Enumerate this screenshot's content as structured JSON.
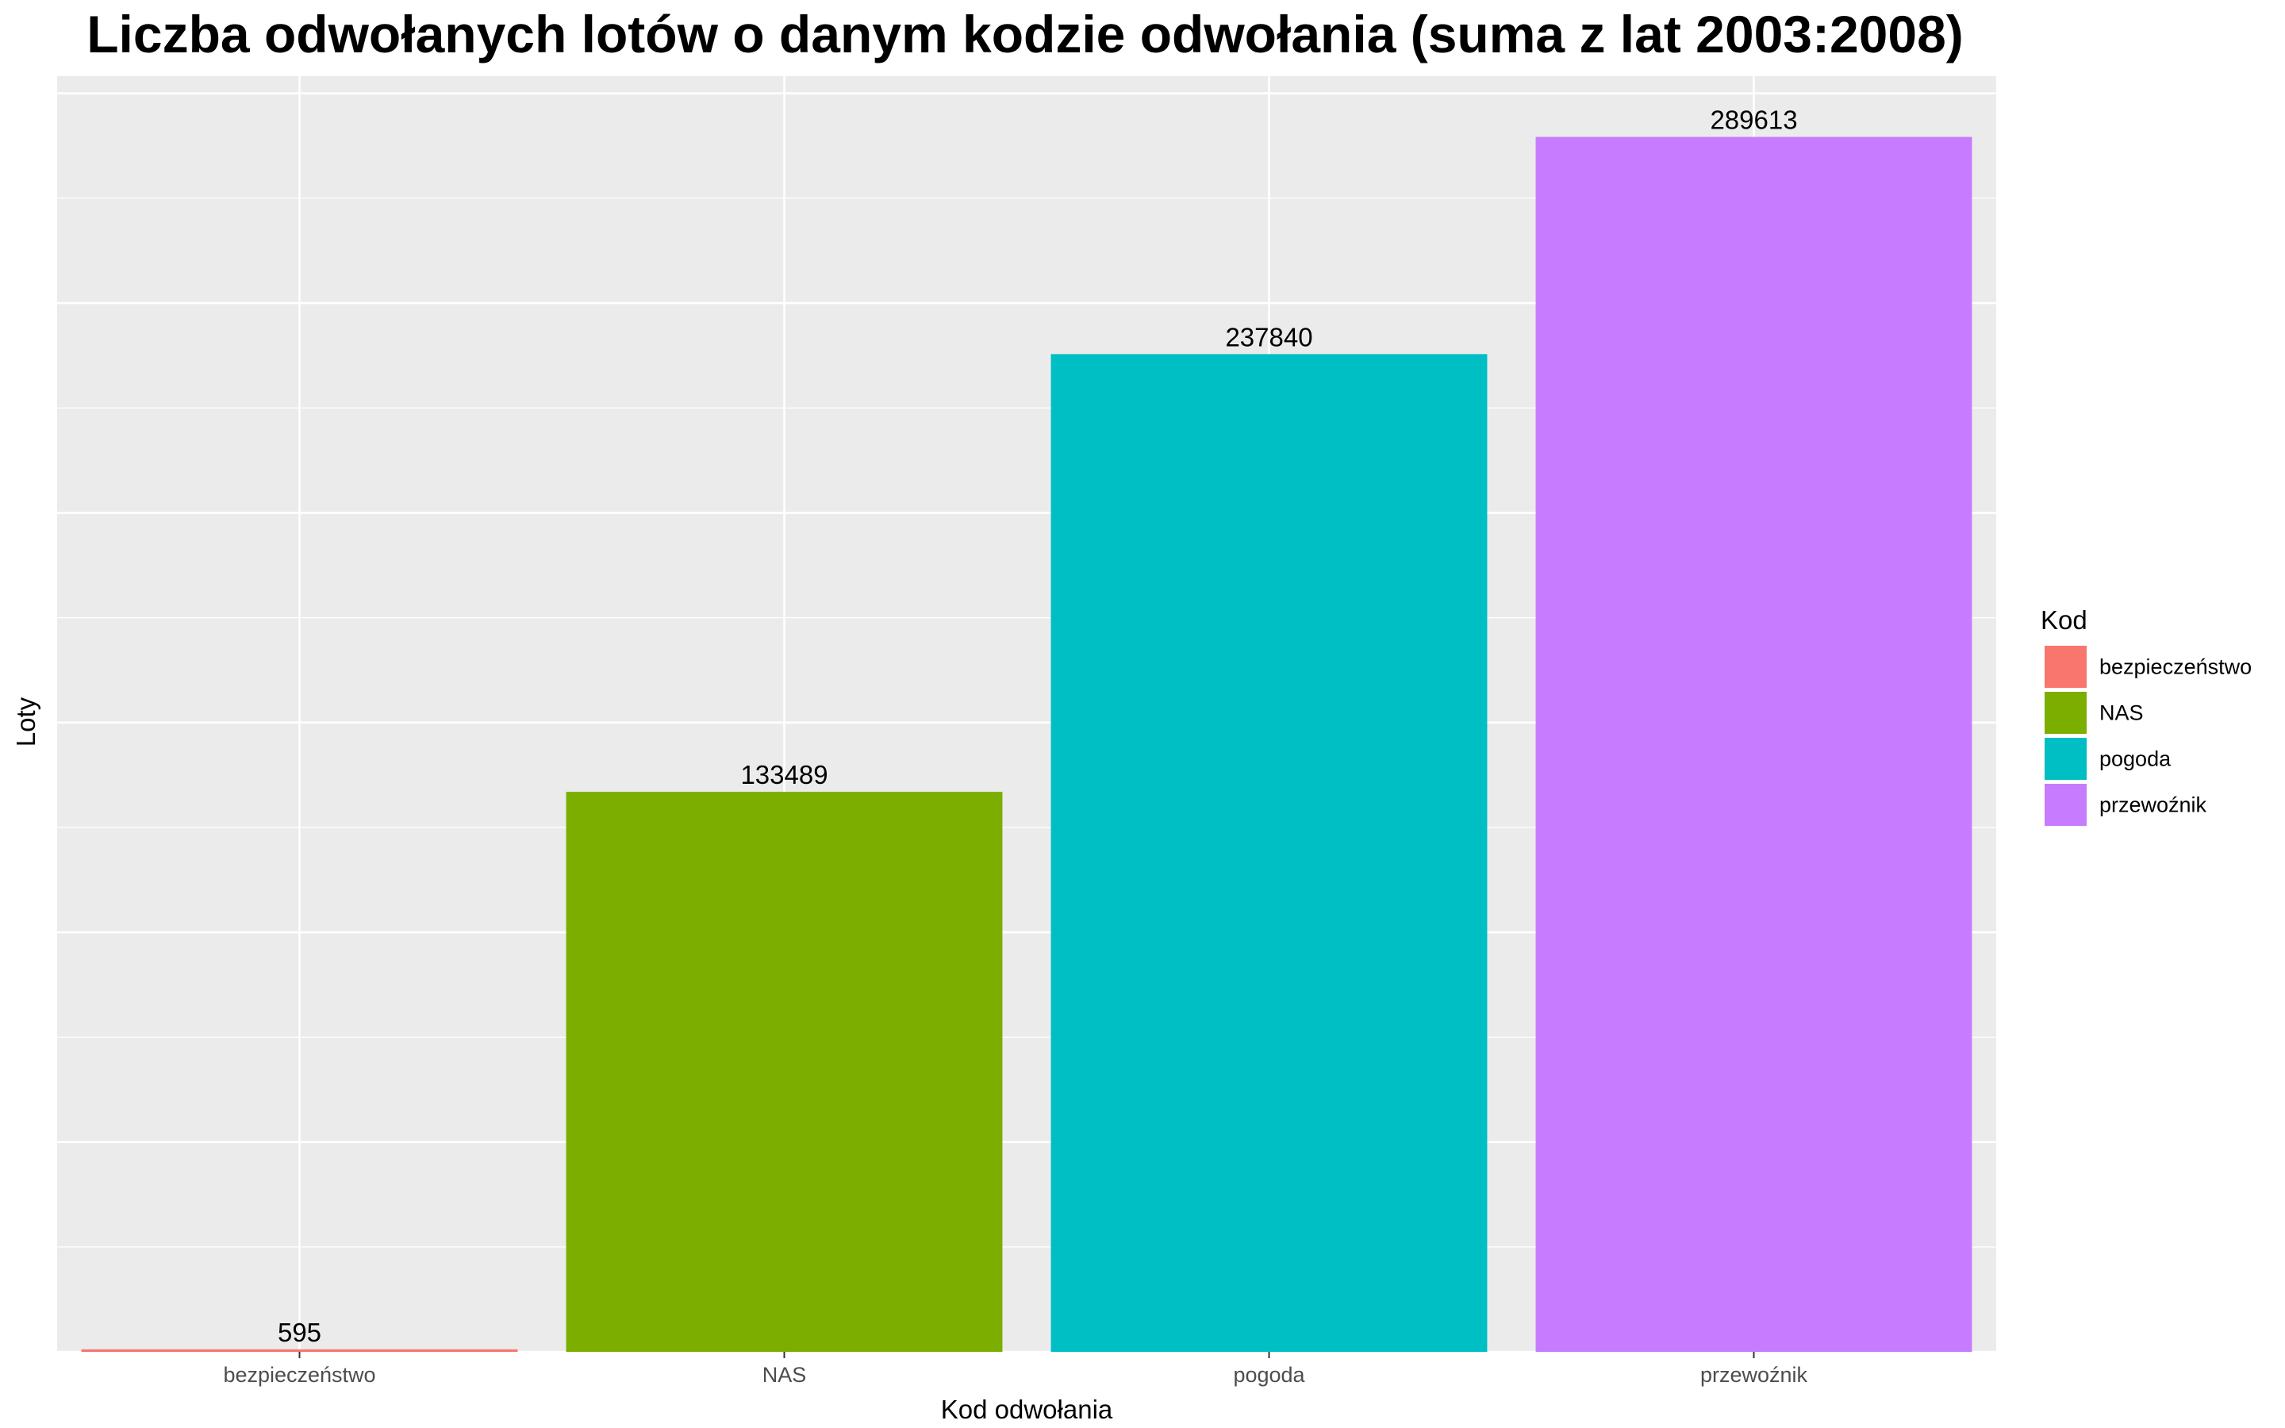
{
  "chart_data": {
    "type": "bar",
    "title": "Liczba odwołanych lotów o danym kodzie odwołania (suma z lat 2003:2008)",
    "xlabel": "Kod odwołania",
    "ylabel": "Loty",
    "categories": [
      "bezpieczeństwo",
      "NAS",
      "pogoda",
      "przewoźnik"
    ],
    "values": [
      595,
      133489,
      237840,
      289613
    ],
    "data_labels": [
      "595",
      "133489",
      "237840",
      "289613"
    ],
    "colors": [
      "#F8766D",
      "#7CAE00",
      "#00BFC4",
      "#C77CFF"
    ],
    "ylim": [
      0,
      304094
    ],
    "y_gridlines": [
      0,
      50000,
      100000,
      150000,
      200000,
      250000,
      300000
    ],
    "y_tick_labels_shown": false,
    "grid": true,
    "panel_background": "#EBEBEB",
    "gridline_color": "#FFFFFF",
    "legend": {
      "title": "Kod",
      "placement": "right",
      "entries": [
        "bezpieczeństwo",
        "NAS",
        "pogoda",
        "przewoźnik"
      ]
    }
  }
}
